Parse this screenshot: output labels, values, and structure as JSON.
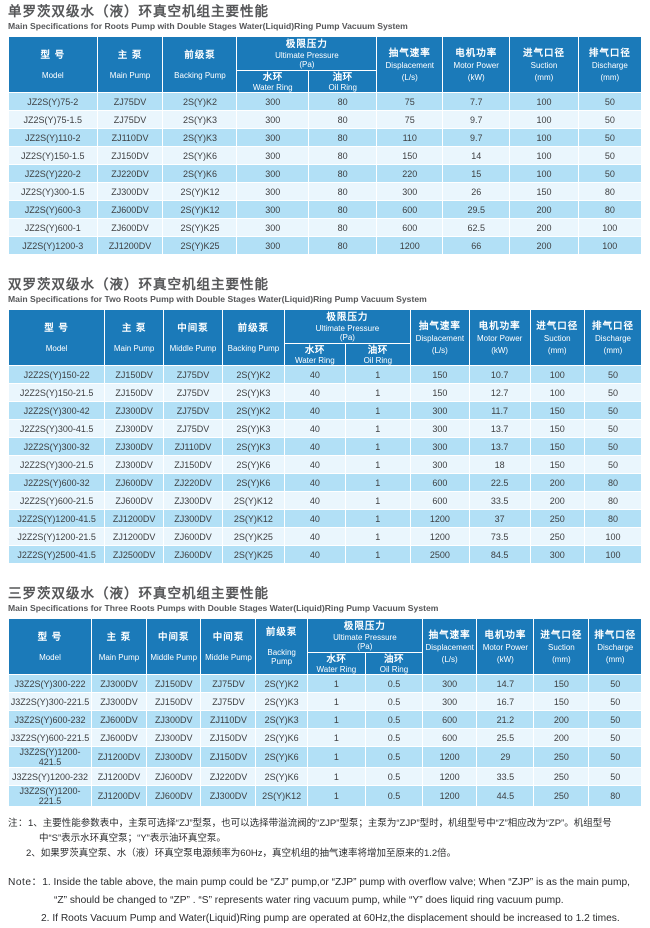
{
  "colors": {
    "header_bg": "#1b7ab9",
    "row_odd": "#b2e0f6",
    "row_even": "#eaf6fd",
    "title_text": "#565759",
    "cell_text": "#3d3e40"
  },
  "sections": [
    {
      "title_zh": "单罗茨双级水（液）环真空机组主要性能",
      "title_en": "Main Specifications for Roots Pump with Double Stages Water(Liquid)Ring Pump Vacuum System",
      "header": {
        "model": {
          "zh": "型 号",
          "en": "Model"
        },
        "pumps": [
          {
            "zh": "主 泵",
            "en": "Main Pump"
          },
          {
            "zh": "前级泵",
            "en": "Backing Pump"
          }
        ],
        "pressure": {
          "zh": "极限压力",
          "en": "Ultimate Pressure",
          "unit": "(Pa)",
          "sub": [
            {
              "zh": "水环",
              "en": "Water Ring"
            },
            {
              "zh": "油环",
              "en": "Oil Ring"
            }
          ]
        },
        "tail": [
          {
            "zh": "抽气速率",
            "en": "Displacement",
            "unit": "(L/s)"
          },
          {
            "zh": "电机功率",
            "en": "Motor Power",
            "unit": "(kW)"
          },
          {
            "zh": "进气口径",
            "en": "Suction",
            "unit": "(mm)"
          },
          {
            "zh": "排气口径",
            "en": "Discharge",
            "unit": "(mm)"
          }
        ]
      },
      "col_widths": [
        "14%",
        "10.4%",
        "11.7%",
        "11.3%",
        "10.8%",
        "10.4%",
        "10.6%",
        "10.8%",
        "10%"
      ],
      "rows": [
        [
          "JZ2S(Y)75-2",
          "ZJ75DV",
          "2S(Y)K2",
          "300",
          "80",
          "75",
          "7.7",
          "100",
          "50"
        ],
        [
          "JZ2S(Y)75-1.5",
          "ZJ75DV",
          "2S(Y)K3",
          "300",
          "80",
          "75",
          "9.7",
          "100",
          "50"
        ],
        [
          "JZ2S(Y)110-2",
          "ZJ110DV",
          "2S(Y)K3",
          "300",
          "80",
          "110",
          "9.7",
          "100",
          "50"
        ],
        [
          "JZ2S(Y)150-1.5",
          "ZJ150DV",
          "2S(Y)K6",
          "300",
          "80",
          "150",
          "14",
          "100",
          "50"
        ],
        [
          "JZ2S(Y)220-2",
          "ZJ220DV",
          "2S(Y)K6",
          "300",
          "80",
          "220",
          "15",
          "100",
          "50"
        ],
        [
          "JZ2S(Y)300-1.5",
          "ZJ300DV",
          "2S(Y)K12",
          "300",
          "80",
          "300",
          "26",
          "150",
          "80"
        ],
        [
          "JZ2S(Y)600-3",
          "ZJ600DV",
          "2S(Y)K12",
          "300",
          "80",
          "600",
          "29.5",
          "200",
          "80"
        ],
        [
          "JZ2S(Y)600-1",
          "ZJ600DV",
          "2S(Y)K25",
          "300",
          "80",
          "600",
          "62.5",
          "200",
          "100"
        ],
        [
          "JZ2S(Y)1200-3",
          "ZJ1200DV",
          "2S(Y)K25",
          "300",
          "80",
          "1200",
          "66",
          "200",
          "100"
        ]
      ]
    },
    {
      "title_zh": "双罗茨双级水（液）环真空机组主要性能",
      "title_en": "Main Specifications for Two Roots Pump with Double Stages Water(Liquid)Ring Pump Vacuum System",
      "header": {
        "model": {
          "zh": "型 号",
          "en": "Model"
        },
        "pumps": [
          {
            "zh": "主 泵",
            "en": "Main Pump"
          },
          {
            "zh": "中间泵",
            "en": "Middle Pump"
          },
          {
            "zh": "前级泵",
            "en": "Backing Pump"
          }
        ],
        "pressure": {
          "zh": "极限压力",
          "en": "Ultimate Pressure",
          "unit": "(Pa)",
          "sub": [
            {
              "zh": "水环",
              "en": "Water Ring"
            },
            {
              "zh": "油环",
              "en": "Oil Ring"
            }
          ]
        },
        "tail": [
          {
            "zh": "抽气速率",
            "en": "Displacement",
            "unit": "(L/s)"
          },
          {
            "zh": "电机功率",
            "en": "Motor Power",
            "unit": "(kW)"
          },
          {
            "zh": "进气口径",
            "en": "Suction",
            "unit": "(mm)"
          },
          {
            "zh": "排气口径",
            "en": "Discharge",
            "unit": "(mm)"
          }
        ]
      },
      "col_widths": [
        "15.2%",
        "9.3%",
        "9.3%",
        "9.8%",
        "9.6%",
        "10.3%",
        "9.3%",
        "9.6%",
        "8.6%",
        "9%"
      ],
      "rows": [
        [
          "J2Z2S(Y)150-22",
          "ZJ150DV",
          "ZJ75DV",
          "2S(Y)K2",
          "40",
          "1",
          "150",
          "10.7",
          "100",
          "50"
        ],
        [
          "J2Z2S(Y)150-21.5",
          "ZJ150DV",
          "ZJ75DV",
          "2S(Y)K3",
          "40",
          "1",
          "150",
          "12.7",
          "100",
          "50"
        ],
        [
          "J2Z2S(Y)300-42",
          "ZJ300DV",
          "ZJ75DV",
          "2S(Y)K2",
          "40",
          "1",
          "300",
          "11.7",
          "150",
          "50"
        ],
        [
          "J2Z2S(Y)300-41.5",
          "ZJ300DV",
          "ZJ75DV",
          "2S(Y)K3",
          "40",
          "1",
          "300",
          "13.7",
          "150",
          "50"
        ],
        [
          "J2Z2S(Y)300-32",
          "ZJ300DV",
          "ZJ110DV",
          "2S(Y)K3",
          "40",
          "1",
          "300",
          "13.7",
          "150",
          "50"
        ],
        [
          "J2Z2S(Y)300-21.5",
          "ZJ300DV",
          "ZJ150DV",
          "2S(Y)K6",
          "40",
          "1",
          "300",
          "18",
          "150",
          "50"
        ],
        [
          "J2Z2S(Y)600-32",
          "ZJ600DV",
          "ZJ220DV",
          "2S(Y)K6",
          "40",
          "1",
          "600",
          "22.5",
          "200",
          "80"
        ],
        [
          "J2Z2S(Y)600-21.5",
          "ZJ600DV",
          "ZJ300DV",
          "2S(Y)K12",
          "40",
          "1",
          "600",
          "33.5",
          "200",
          "80"
        ],
        [
          "J2Z2S(Y)1200-41.5",
          "ZJ1200DV",
          "ZJ300DV",
          "2S(Y)K12",
          "40",
          "1",
          "1200",
          "37",
          "250",
          "80"
        ],
        [
          "J2Z2S(Y)1200-21.5",
          "ZJ1200DV",
          "ZJ600DV",
          "2S(Y)K25",
          "40",
          "1",
          "1200",
          "73.5",
          "250",
          "100"
        ],
        [
          "J2Z2S(Y)2500-41.5",
          "ZJ2500DV",
          "ZJ600DV",
          "2S(Y)K25",
          "40",
          "1",
          "2500",
          "84.5",
          "300",
          "100"
        ]
      ]
    },
    {
      "title_zh": "三罗茨双级水（液）环真空机组主要性能",
      "title_en": "Main Specifications for Three Roots Pumps with Double Stages Water(Liquid)Ring Pump Vacuum System",
      "header": {
        "model": {
          "zh": "型 号",
          "en": "Model"
        },
        "pumps": [
          {
            "zh": "主 泵",
            "en": "Main Pump"
          },
          {
            "zh": "中间泵",
            "en": "Middle Pump"
          },
          {
            "zh": "中间泵",
            "en": "Middle Pump"
          },
          {
            "zh": "前级泵",
            "en": "Backing Pump"
          }
        ],
        "pressure": {
          "zh": "极限压力",
          "en": "Ultimate Pressure",
          "unit": "(Pa)",
          "sub": [
            {
              "zh": "水环",
              "en": "Water Ring"
            },
            {
              "zh": "油环",
              "en": "Oil Ring"
            }
          ]
        },
        "tail": [
          {
            "zh": "抽气速率",
            "en": "Displacement",
            "unit": "(L/s)"
          },
          {
            "zh": "电机功率",
            "en": "Motor Power",
            "unit": "(kW)"
          },
          {
            "zh": "进气口径",
            "en": "Suction",
            "unit": "(mm)"
          },
          {
            "zh": "排气口径",
            "en": "Discharge",
            "unit": "(mm)"
          }
        ]
      },
      "col_widths": [
        "13.1%",
        "8.7%",
        "8.6%",
        "8.7%",
        "8.1%",
        "9.2%",
        "9%",
        "8.6%",
        "9%",
        "8.7%",
        "8.3%"
      ],
      "rows": [
        [
          "J3Z2S(Y)300-222",
          "ZJ300DV",
          "ZJ150DV",
          "ZJ75DV",
          "2S(Y)K2",
          "1",
          "0.5",
          "300",
          "14.7",
          "150",
          "50"
        ],
        [
          "J3Z2S(Y)300-221.5",
          "ZJ300DV",
          "ZJ150DV",
          "ZJ75DV",
          "2S(Y)K3",
          "1",
          "0.5",
          "300",
          "16.7",
          "150",
          "50"
        ],
        [
          "J3Z2S(Y)600-232",
          "ZJ600DV",
          "ZJ300DV",
          "ZJ110DV",
          "2S(Y)K3",
          "1",
          "0.5",
          "600",
          "21.2",
          "200",
          "50"
        ],
        [
          "J3Z2S(Y)600-221.5",
          "ZJ600DV",
          "ZJ300DV",
          "ZJ150DV",
          "2S(Y)K6",
          "1",
          "0.5",
          "600",
          "25.5",
          "200",
          "50"
        ],
        [
          "J3Z2S(Y)1200-421.5",
          "ZJ1200DV",
          "ZJ300DV",
          "ZJ150DV",
          "2S(Y)K6",
          "1",
          "0.5",
          "1200",
          "29",
          "250",
          "50"
        ],
        [
          "J3Z2S(Y)1200-232",
          "ZJ1200DV",
          "ZJ600DV",
          "ZJ220DV",
          "2S(Y)K6",
          "1",
          "0.5",
          "1200",
          "33.5",
          "250",
          "50"
        ],
        [
          "J3Z2S(Y)1200-221.5",
          "ZJ1200DV",
          "ZJ600DV",
          "ZJ300DV",
          "2S(Y)K12",
          "1",
          "0.5",
          "1200",
          "44.5",
          "250",
          "80"
        ]
      ]
    }
  ],
  "notes": {
    "zh": {
      "label": "注：",
      "items": [
        "1、主要性能参数表中，主泵可选择“ZJ”型泵，也可以选择带溢流阀的“ZJP”型泵；主泵为“ZJP”型时，机组型号中“Z”相应改为“ZP”。机组型号中“S”表示水环真空泵；“Y”表示油环真空泵。",
        "2、如果罗茨真空泵、水（液）环真空泵电源频率为60Hz，真空机组的抽气速率将增加至原来的1.2倍。"
      ]
    },
    "en": {
      "label": "Note：",
      "items": [
        "1. Inside the table above, the main pump could be “ZJ” pump,or “ZJP” pump with overflow valve; When “ZJP” is as the main pump, “Z” should be changed to “ZP” . “S” represents water ring vacuum pump, while “Y” does liquid ring vacuum pump.",
        "2. If Roots Vacuum Pump and Water(Liquid)Ring pump are operated at 60Hz,the displacement should be increased to 1.2 times."
      ]
    }
  }
}
